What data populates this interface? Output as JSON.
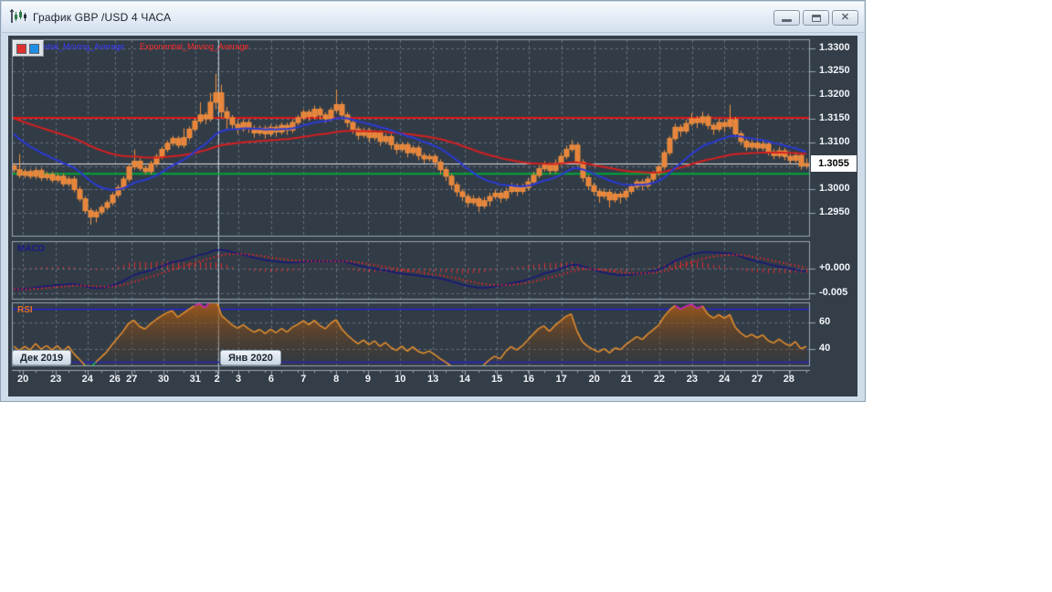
{
  "window": {
    "title": "График GBP /USD  4 ЧАСА",
    "buttons": {
      "minimize": "minimize",
      "restore": "restore",
      "close": "close"
    }
  },
  "legend": {
    "fast_label": "Exponential_Moving_Average",
    "slow_label": "Exponential_Moving_Average",
    "fast_color": "#3a3aff",
    "slow_color": "#ff2a2a"
  },
  "chart_data": {
    "type": "candlestick",
    "symbol": "GBP /USD",
    "timeframe": "4 ЧАСА",
    "candles_format": "[open, high, low, close]",
    "price_axis": {
      "tick_labels": [
        "1.3300",
        "1.3250",
        "1.3200",
        "1.3150",
        "1.3100",
        "1.3000",
        "1.2950"
      ],
      "tick_values": [
        1.33,
        1.325,
        1.32,
        1.315,
        1.31,
        1.3,
        1.295
      ],
      "grid_values": [
        1.33,
        1.325,
        1.32,
        1.315,
        1.31,
        1.305,
        1.3,
        1.295
      ],
      "current_price": 1.3055,
      "current_price_label": "1.3055"
    },
    "hlines": [
      {
        "value": 1.3152,
        "color": "#e01616",
        "width": 2
      },
      {
        "value": 1.3033,
        "color": "#00a838",
        "width": 2
      }
    ],
    "x_labels": [
      [
        "20",
        1.7
      ],
      [
        "23",
        7.7
      ],
      [
        "24",
        13.5
      ],
      [
        "26",
        18.5
      ],
      [
        "27",
        21.6
      ],
      [
        "30",
        27.4
      ],
      [
        "31",
        33.2
      ],
      [
        "2",
        37.2
      ],
      [
        "3",
        41.1
      ],
      [
        "6",
        47.1
      ],
      [
        "7",
        53.0
      ],
      [
        "8",
        59.0
      ],
      [
        "9",
        64.8
      ],
      [
        "10",
        70.7
      ],
      [
        "13",
        76.7
      ],
      [
        "14",
        82.5
      ],
      [
        "15",
        88.4
      ],
      [
        "16",
        94.2
      ],
      [
        "17",
        100.2
      ],
      [
        "20",
        106.2
      ],
      [
        "21",
        112.1
      ],
      [
        "22",
        118.1
      ],
      [
        "23",
        124.1
      ],
      [
        "24",
        130.0
      ],
      [
        "27",
        136.0
      ],
      [
        "28",
        141.8
      ]
    ],
    "month_separator_bar": 37.35,
    "month_labels": [
      {
        "text": "Дек 2019"
      },
      {
        "text": "Янв 2020"
      }
    ],
    "candles": [
      [
        1.305,
        1.3056,
        1.3036,
        1.3042
      ],
      [
        1.3042,
        1.3075,
        1.3024,
        1.303
      ],
      [
        1.303,
        1.3044,
        1.3024,
        1.3038
      ],
      [
        1.3038,
        1.3044,
        1.3022,
        1.3028
      ],
      [
        1.3028,
        1.3046,
        1.3022,
        1.304
      ],
      [
        1.304,
        1.3046,
        1.3018,
        1.3025
      ],
      [
        1.3025,
        1.3038,
        1.3019,
        1.3032
      ],
      [
        1.3032,
        1.3038,
        1.3014,
        1.302
      ],
      [
        1.302,
        1.3034,
        1.3014,
        1.3028
      ],
      [
        1.3028,
        1.3034,
        1.3006,
        1.3012
      ],
      [
        1.3012,
        1.3028,
        1.3006,
        1.3022
      ],
      [
        1.3022,
        1.3028,
        1.2994,
        1.3
      ],
      [
        1.3,
        1.3006,
        1.2974,
        1.298
      ],
      [
        1.298,
        1.2986,
        1.2949,
        1.2955
      ],
      [
        1.2955,
        1.2961,
        1.2925,
        1.2942
      ],
      [
        1.2942,
        1.2958,
        1.293,
        1.2952
      ],
      [
        1.2952,
        1.2968,
        1.2946,
        1.2962
      ],
      [
        1.2962,
        1.2978,
        1.2956,
        1.2972
      ],
      [
        1.2972,
        1.2994,
        1.2966,
        1.2988
      ],
      [
        1.2988,
        1.301,
        1.2982,
        1.3004
      ],
      [
        1.3004,
        1.3028,
        1.2998,
        1.3022
      ],
      [
        1.3022,
        1.3054,
        1.3016,
        1.3048
      ],
      [
        1.3048,
        1.3085,
        1.3042,
        1.306
      ],
      [
        1.306,
        1.3066,
        1.3039,
        1.3045
      ],
      [
        1.3045,
        1.3051,
        1.3032,
        1.3038
      ],
      [
        1.3038,
        1.3061,
        1.3032,
        1.3055
      ],
      [
        1.3055,
        1.3076,
        1.3049,
        1.307
      ],
      [
        1.307,
        1.3091,
        1.3064,
        1.3085
      ],
      [
        1.3085,
        1.3104,
        1.3079,
        1.3098
      ],
      [
        1.3098,
        1.3114,
        1.3092,
        1.3108
      ],
      [
        1.3108,
        1.3114,
        1.3088,
        1.3094
      ],
      [
        1.3094,
        1.313,
        1.3088,
        1.311
      ],
      [
        1.311,
        1.3134,
        1.3104,
        1.3128
      ],
      [
        1.3128,
        1.3151,
        1.3122,
        1.3145
      ],
      [
        1.3145,
        1.3185,
        1.3139,
        1.3158
      ],
      [
        1.3158,
        1.3164,
        1.3138,
        1.315
      ],
      [
        1.315,
        1.3205,
        1.3144,
        1.3185
      ],
      [
        1.3185,
        1.3245,
        1.317,
        1.3205
      ],
      [
        1.3205,
        1.3222,
        1.3152,
        1.3165
      ],
      [
        1.3165,
        1.3175,
        1.3128,
        1.3152
      ],
      [
        1.3152,
        1.3158,
        1.3128,
        1.3138
      ],
      [
        1.3138,
        1.3148,
        1.3118,
        1.3128
      ],
      [
        1.3128,
        1.3148,
        1.3122,
        1.3142
      ],
      [
        1.3142,
        1.3148,
        1.312,
        1.313
      ],
      [
        1.313,
        1.3136,
        1.311,
        1.312
      ],
      [
        1.312,
        1.3136,
        1.3114,
        1.313
      ],
      [
        1.313,
        1.3136,
        1.3108,
        1.3118
      ],
      [
        1.3118,
        1.3138,
        1.3112,
        1.3132
      ],
      [
        1.3132,
        1.3138,
        1.3112,
        1.3122
      ],
      [
        1.3122,
        1.3142,
        1.3116,
        1.3136
      ],
      [
        1.3136,
        1.3142,
        1.3116,
        1.3126
      ],
      [
        1.3126,
        1.3148,
        1.312,
        1.3142
      ],
      [
        1.3142,
        1.3158,
        1.3136,
        1.3152
      ],
      [
        1.3152,
        1.317,
        1.3146,
        1.3164
      ],
      [
        1.3164,
        1.317,
        1.3145,
        1.3155
      ],
      [
        1.3155,
        1.3178,
        1.3149,
        1.317
      ],
      [
        1.317,
        1.3176,
        1.3148,
        1.3158
      ],
      [
        1.3158,
        1.3164,
        1.314,
        1.315
      ],
      [
        1.315,
        1.3174,
        1.3144,
        1.3168
      ],
      [
        1.3168,
        1.3212,
        1.3162,
        1.318
      ],
      [
        1.318,
        1.3186,
        1.3148,
        1.3158
      ],
      [
        1.3158,
        1.3164,
        1.3132,
        1.3142
      ],
      [
        1.3142,
        1.3148,
        1.3118,
        1.3128
      ],
      [
        1.3128,
        1.3134,
        1.3105,
        1.3115
      ],
      [
        1.3115,
        1.3131,
        1.3109,
        1.3125
      ],
      [
        1.3125,
        1.3131,
        1.31,
        1.311
      ],
      [
        1.311,
        1.3126,
        1.3104,
        1.312
      ],
      [
        1.312,
        1.3126,
        1.3092,
        1.3102
      ],
      [
        1.3102,
        1.3118,
        1.3096,
        1.3112
      ],
      [
        1.3112,
        1.3118,
        1.3085,
        1.3095
      ],
      [
        1.3095,
        1.3101,
        1.3075,
        1.3085
      ],
      [
        1.3085,
        1.3101,
        1.3079,
        1.3095
      ],
      [
        1.3095,
        1.3101,
        1.3068,
        1.3078
      ],
      [
        1.3078,
        1.3094,
        1.3072,
        1.3088
      ],
      [
        1.3088,
        1.3094,
        1.3062,
        1.3072
      ],
      [
        1.3072,
        1.3078,
        1.3055,
        1.3065
      ],
      [
        1.3065,
        1.3076,
        1.3059,
        1.307
      ],
      [
        1.307,
        1.3076,
        1.3048,
        1.3058
      ],
      [
        1.3058,
        1.3064,
        1.3032,
        1.3042
      ],
      [
        1.3042,
        1.3048,
        1.3018,
        1.3028
      ],
      [
        1.3028,
        1.3034,
        1.3,
        1.301
      ],
      [
        1.301,
        1.3016,
        1.2985,
        1.2995
      ],
      [
        1.2995,
        1.3001,
        1.2975,
        1.2985
      ],
      [
        1.2985,
        1.2991,
        1.2962,
        1.2972
      ],
      [
        1.2972,
        1.2988,
        1.2966,
        1.298
      ],
      [
        1.298,
        1.2986,
        1.2952,
        1.2965
      ],
      [
        1.2965,
        1.2984,
        1.2959,
        1.2976
      ],
      [
        1.2976,
        1.2993,
        1.2964,
        1.2985
      ],
      [
        1.2985,
        1.3,
        1.2979,
        1.2992
      ],
      [
        1.2992,
        1.2998,
        1.2972,
        1.2982
      ],
      [
        1.2982,
        1.3004,
        1.2976,
        1.2996
      ],
      [
        1.2996,
        1.3014,
        1.299,
        1.3006
      ],
      [
        1.3006,
        1.3012,
        1.2986,
        1.2996
      ],
      [
        1.2996,
        1.3012,
        1.299,
        1.3004
      ],
      [
        1.3004,
        1.3024,
        1.2998,
        1.3016
      ],
      [
        1.3016,
        1.3038,
        1.301,
        1.303
      ],
      [
        1.303,
        1.3052,
        1.3024,
        1.3044
      ],
      [
        1.3044,
        1.306,
        1.3038,
        1.3052
      ],
      [
        1.3052,
        1.3058,
        1.3032,
        1.304
      ],
      [
        1.304,
        1.3064,
        1.3034,
        1.3056
      ],
      [
        1.3056,
        1.3078,
        1.305,
        1.307
      ],
      [
        1.307,
        1.3093,
        1.3064,
        1.3085
      ],
      [
        1.3085,
        1.3105,
        1.3079,
        1.3094
      ],
      [
        1.3094,
        1.31,
        1.305,
        1.3058
      ],
      [
        1.3058,
        1.3064,
        1.3016,
        1.3025
      ],
      [
        1.3025,
        1.3031,
        1.2999,
        1.3008
      ],
      [
        1.3008,
        1.3014,
        1.2988,
        1.2996
      ],
      [
        1.2996,
        1.3002,
        1.2972,
        1.2986
      ],
      [
        1.2986,
        1.3002,
        1.298,
        1.2994
      ],
      [
        1.2994,
        1.3,
        1.2962,
        1.2978
      ],
      [
        1.2978,
        1.2996,
        1.2972,
        1.299
      ],
      [
        1.299,
        1.2996,
        1.297,
        1.2984
      ],
      [
        1.2984,
        1.3002,
        1.2978,
        1.2996
      ],
      [
        1.2996,
        1.3012,
        1.299,
        1.3006
      ],
      [
        1.3006,
        1.3022,
        1.3,
        1.3016
      ],
      [
        1.3016,
        1.3022,
        1.2998,
        1.3008
      ],
      [
        1.3008,
        1.3028,
        1.3002,
        1.3022
      ],
      [
        1.3022,
        1.304,
        1.3016,
        1.3034
      ],
      [
        1.3034,
        1.3054,
        1.3028,
        1.3048
      ],
      [
        1.3048,
        1.3084,
        1.3042,
        1.3078
      ],
      [
        1.3078,
        1.3114,
        1.3072,
        1.3108
      ],
      [
        1.3108,
        1.314,
        1.3102,
        1.3132
      ],
      [
        1.3132,
        1.3138,
        1.3112,
        1.3124
      ],
      [
        1.3124,
        1.3148,
        1.3118,
        1.314
      ],
      [
        1.314,
        1.3162,
        1.3134,
        1.315
      ],
      [
        1.315,
        1.3156,
        1.313,
        1.3142
      ],
      [
        1.3142,
        1.3165,
        1.3136,
        1.3154
      ],
      [
        1.3154,
        1.316,
        1.3128,
        1.3136
      ],
      [
        1.3136,
        1.3142,
        1.3116,
        1.3128
      ],
      [
        1.3128,
        1.315,
        1.3122,
        1.3142
      ],
      [
        1.3142,
        1.3148,
        1.3122,
        1.3134
      ],
      [
        1.3134,
        1.318,
        1.3128,
        1.3148
      ],
      [
        1.3148,
        1.3154,
        1.311,
        1.3118
      ],
      [
        1.3118,
        1.3124,
        1.3094,
        1.3102
      ],
      [
        1.3102,
        1.3108,
        1.3082,
        1.309
      ],
      [
        1.309,
        1.3106,
        1.3084,
        1.3098
      ],
      [
        1.3098,
        1.311,
        1.3082,
        1.3088
      ],
      [
        1.3088,
        1.3104,
        1.3082,
        1.3096
      ],
      [
        1.3096,
        1.3102,
        1.3072,
        1.308
      ],
      [
        1.308,
        1.3086,
        1.3064,
        1.3072
      ],
      [
        1.3072,
        1.309,
        1.3066,
        1.3082
      ],
      [
        1.3082,
        1.3088,
        1.3062,
        1.307
      ],
      [
        1.307,
        1.3076,
        1.3054,
        1.3062
      ],
      [
        1.3062,
        1.308,
        1.3056,
        1.3072
      ],
      [
        1.3072,
        1.3078,
        1.3042,
        1.305
      ],
      [
        1.305,
        1.3066,
        1.3044,
        1.3055
      ]
    ],
    "candle_color": "#e8843c",
    "overlays": {
      "ema_fast": {
        "type": "EMA",
        "period": 16,
        "seed": 1.3128,
        "color": "#2b3ad4",
        "width": 2
      },
      "ema_slow": {
        "type": "EMA",
        "period": 54,
        "seed": 1.3155,
        "color": "#d42020",
        "width": 2
      }
    },
    "macd": {
      "label": "MACD",
      "fast": 12,
      "slow": 26,
      "signal_period": 9,
      "seed_fast": 1.3068,
      "seed_slow": 1.3112,
      "seed_signal": -0.0042,
      "tick_labels": [
        "+0.000",
        "-0.005"
      ],
      "tick_values": [
        0,
        -0.005
      ],
      "line_color": "#15157d",
      "signal_color": "#e22828",
      "hist_color": "#d83030"
    },
    "rsi": {
      "label": "RSI",
      "period": 14,
      "seed_avg_gain": 0.00045,
      "seed_avg_loss": 0.00062,
      "levels": [
        70,
        30
      ],
      "tick_labels": [
        "60",
        "40"
      ],
      "tick_values": [
        60,
        40
      ],
      "line_color": "#e8912e",
      "over_color": "#df1fd0",
      "under_color": "#10c24e",
      "level_color": "#2424cc"
    }
  }
}
